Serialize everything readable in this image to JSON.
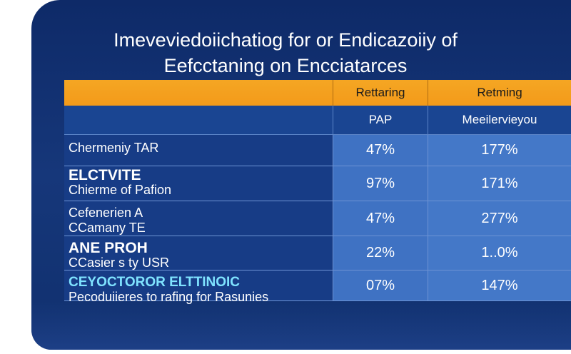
{
  "title": {
    "line1": "Imeveviedoiichatiog for or Endicazoiiy of",
    "line2": "Eefcctaning on Encciatarces"
  },
  "table": {
    "header": {
      "col1": "Rettaring",
      "col2": "Retming"
    },
    "subheader": {
      "col1": "PAP",
      "col2": "Meeilervieyou"
    },
    "rows": [
      {
        "lines": [
          "Chermeniy TAR"
        ],
        "v1": "47%",
        "v2": "177%"
      },
      {
        "lines": [
          "ELCTVITE",
          "Chierme of Pafion"
        ],
        "v1": "97%",
        "v2": "171%"
      },
      {
        "lines": [
          "Cefenerien A",
          "CCamany TE"
        ],
        "v1": "47%",
        "v2": "277%"
      },
      {
        "lines": [
          "ANE PROH",
          "CCasier  s ty USR"
        ],
        "v1": "22%",
        "v2": "1..0%"
      },
      {
        "lines": [
          "CEYOCTOROR ELTTINOIC",
          "Pecoduiieres to rafing for  Rasunies"
        ],
        "v1": "07%",
        "v2": "147%"
      }
    ]
  },
  "colors": {
    "background": "#16377a",
    "header_accent": "#f5a623",
    "value_cell": "#3f72c3",
    "highlight_text": "#7fe3ff"
  }
}
